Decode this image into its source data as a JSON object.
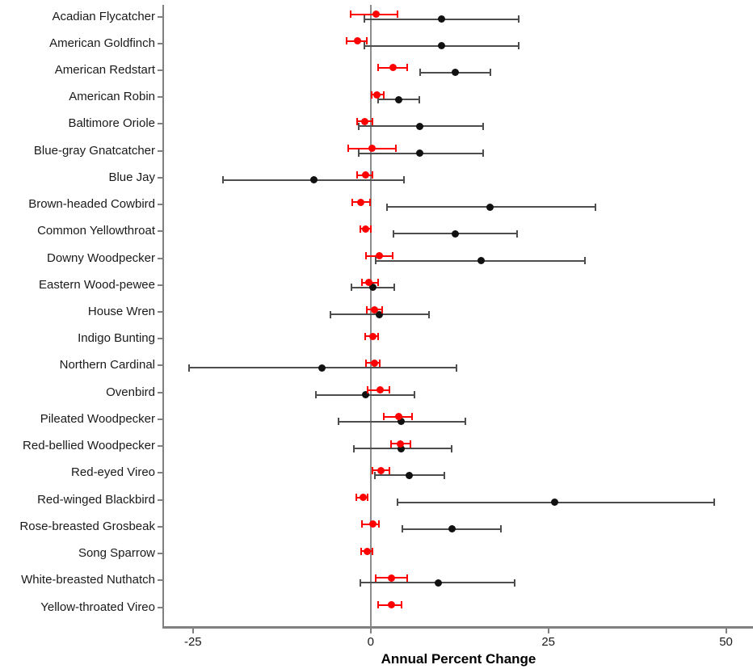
{
  "chart_data": {
    "type": "scatter",
    "subtype": "dot-and-interval-forest-plot",
    "title": "",
    "xlabel": "Annual Percent Change",
    "ylabel": "",
    "x_ticks": [
      -25,
      0,
      25,
      50
    ],
    "x_tick_labels": [
      "-25",
      "0",
      "25",
      "50"
    ],
    "x_domain": [
      -29.3,
      53.8
    ],
    "reference_line_x": 0,
    "grid": false,
    "legend": "none",
    "series_meta": [
      {
        "id": "red",
        "dot_color": "#ff0000",
        "bar_color": "#ff0000"
      },
      {
        "id": "black",
        "dot_color": "#111111",
        "bar_color": "#4d4d4d"
      }
    ],
    "species": [
      {
        "name": "Acadian Flycatcher",
        "red": {
          "lo": -2.8,
          "mid": 0.8,
          "hi": 3.8
        },
        "black": {
          "lo": -0.9,
          "mid": 10.0,
          "hi": 20.8
        }
      },
      {
        "name": "American Goldfinch",
        "red": {
          "lo": -3.4,
          "mid": -1.9,
          "hi": -0.5
        },
        "black": {
          "lo": -0.9,
          "mid": 10.0,
          "hi": 20.8
        }
      },
      {
        "name": "American Redstart",
        "red": {
          "lo": 1.1,
          "mid": 3.1,
          "hi": 5.1
        },
        "black": {
          "lo": 7.0,
          "mid": 11.9,
          "hi": 16.8
        }
      },
      {
        "name": "American Robin",
        "red": {
          "lo": 0.1,
          "mid": 0.9,
          "hi": 1.8
        },
        "black": {
          "lo": 1.1,
          "mid": 4.0,
          "hi": 6.8
        }
      },
      {
        "name": "Baltimore Oriole",
        "red": {
          "lo": -1.9,
          "mid": -0.8,
          "hi": 0.2
        },
        "black": {
          "lo": -1.7,
          "mid": 6.9,
          "hi": 15.8
        }
      },
      {
        "name": "Blue-gray Gnatcatcher",
        "red": {
          "lo": -3.1,
          "mid": 0.2,
          "hi": 3.5
        },
        "black": {
          "lo": -1.7,
          "mid": 6.9,
          "hi": 15.8
        }
      },
      {
        "name": "Blue Jay",
        "red": {
          "lo": -1.9,
          "mid": -0.7,
          "hi": 0.3
        },
        "black": {
          "lo": -20.8,
          "mid": -8.0,
          "hi": 4.7
        }
      },
      {
        "name": "Brown-headed Cowbird",
        "red": {
          "lo": -2.6,
          "mid": -1.4,
          "hi": -0.1
        },
        "black": {
          "lo": 2.3,
          "mid": 16.8,
          "hi": 31.6
        }
      },
      {
        "name": "Common Yellowthroat",
        "red": {
          "lo": -1.5,
          "mid": -0.7,
          "hi": 0.0
        },
        "black": {
          "lo": 3.2,
          "mid": 11.9,
          "hi": 20.6
        }
      },
      {
        "name": "Downy Woodpecker",
        "red": {
          "lo": -0.7,
          "mid": 1.2,
          "hi": 3.1
        },
        "black": {
          "lo": 0.7,
          "mid": 15.5,
          "hi": 30.2
        }
      },
      {
        "name": "Eastern Wood-pewee",
        "red": {
          "lo": -1.2,
          "mid": -0.2,
          "hi": 1.0
        },
        "black": {
          "lo": -2.7,
          "mid": 0.3,
          "hi": 3.3
        }
      },
      {
        "name": "House Wren",
        "red": {
          "lo": -0.5,
          "mid": 0.5,
          "hi": 1.6
        },
        "black": {
          "lo": -5.6,
          "mid": 1.2,
          "hi": 8.2
        }
      },
      {
        "name": "Indigo Bunting",
        "red": {
          "lo": -0.8,
          "mid": 0.3,
          "hi": 1.1
        },
        "black": null
      },
      {
        "name": "Northern Cardinal",
        "red": {
          "lo": -0.6,
          "mid": 0.5,
          "hi": 1.3
        },
        "black": {
          "lo": -25.6,
          "mid": -6.8,
          "hi": 12.1
        }
      },
      {
        "name": "Ovenbird",
        "red": {
          "lo": -0.4,
          "mid": 1.3,
          "hi": 2.6
        },
        "black": {
          "lo": -7.7,
          "mid": -0.7,
          "hi": 6.2
        }
      },
      {
        "name": "Pileated Woodpecker",
        "red": {
          "lo": 1.8,
          "mid": 3.9,
          "hi": 5.8
        },
        "black": {
          "lo": -4.5,
          "mid": 4.3,
          "hi": 13.3
        }
      },
      {
        "name": "Red-bellied Woodpecker",
        "red": {
          "lo": 2.9,
          "mid": 4.2,
          "hi": 5.6
        },
        "black": {
          "lo": -2.4,
          "mid": 4.3,
          "hi": 11.4
        }
      },
      {
        "name": "Red-eyed Vireo",
        "red": {
          "lo": 0.3,
          "mid": 1.5,
          "hi": 2.7
        },
        "black": {
          "lo": 0.6,
          "mid": 5.4,
          "hi": 10.4
        }
      },
      {
        "name": "Red-winged Blackbird",
        "red": {
          "lo": -2.0,
          "mid": -1.1,
          "hi": -0.4
        },
        "black": {
          "lo": 3.8,
          "mid": 25.9,
          "hi": 48.3
        }
      },
      {
        "name": "Rose-breasted Grosbeak",
        "red": {
          "lo": -1.2,
          "mid": 0.3,
          "hi": 1.2
        },
        "black": {
          "lo": 4.5,
          "mid": 11.5,
          "hi": 18.3
        }
      },
      {
        "name": "Song Sparrow",
        "red": {
          "lo": -1.3,
          "mid": -0.5,
          "hi": 0.3
        },
        "black": null
      },
      {
        "name": "White-breasted Nuthatch",
        "red": {
          "lo": 0.7,
          "mid": 2.9,
          "hi": 5.1
        },
        "black": {
          "lo": -1.4,
          "mid": 9.5,
          "hi": 20.3
        }
      },
      {
        "name": "Yellow-throated Vireo",
        "red": {
          "lo": 1.0,
          "mid": 2.9,
          "hi": 4.4
        },
        "black": null
      }
    ]
  }
}
